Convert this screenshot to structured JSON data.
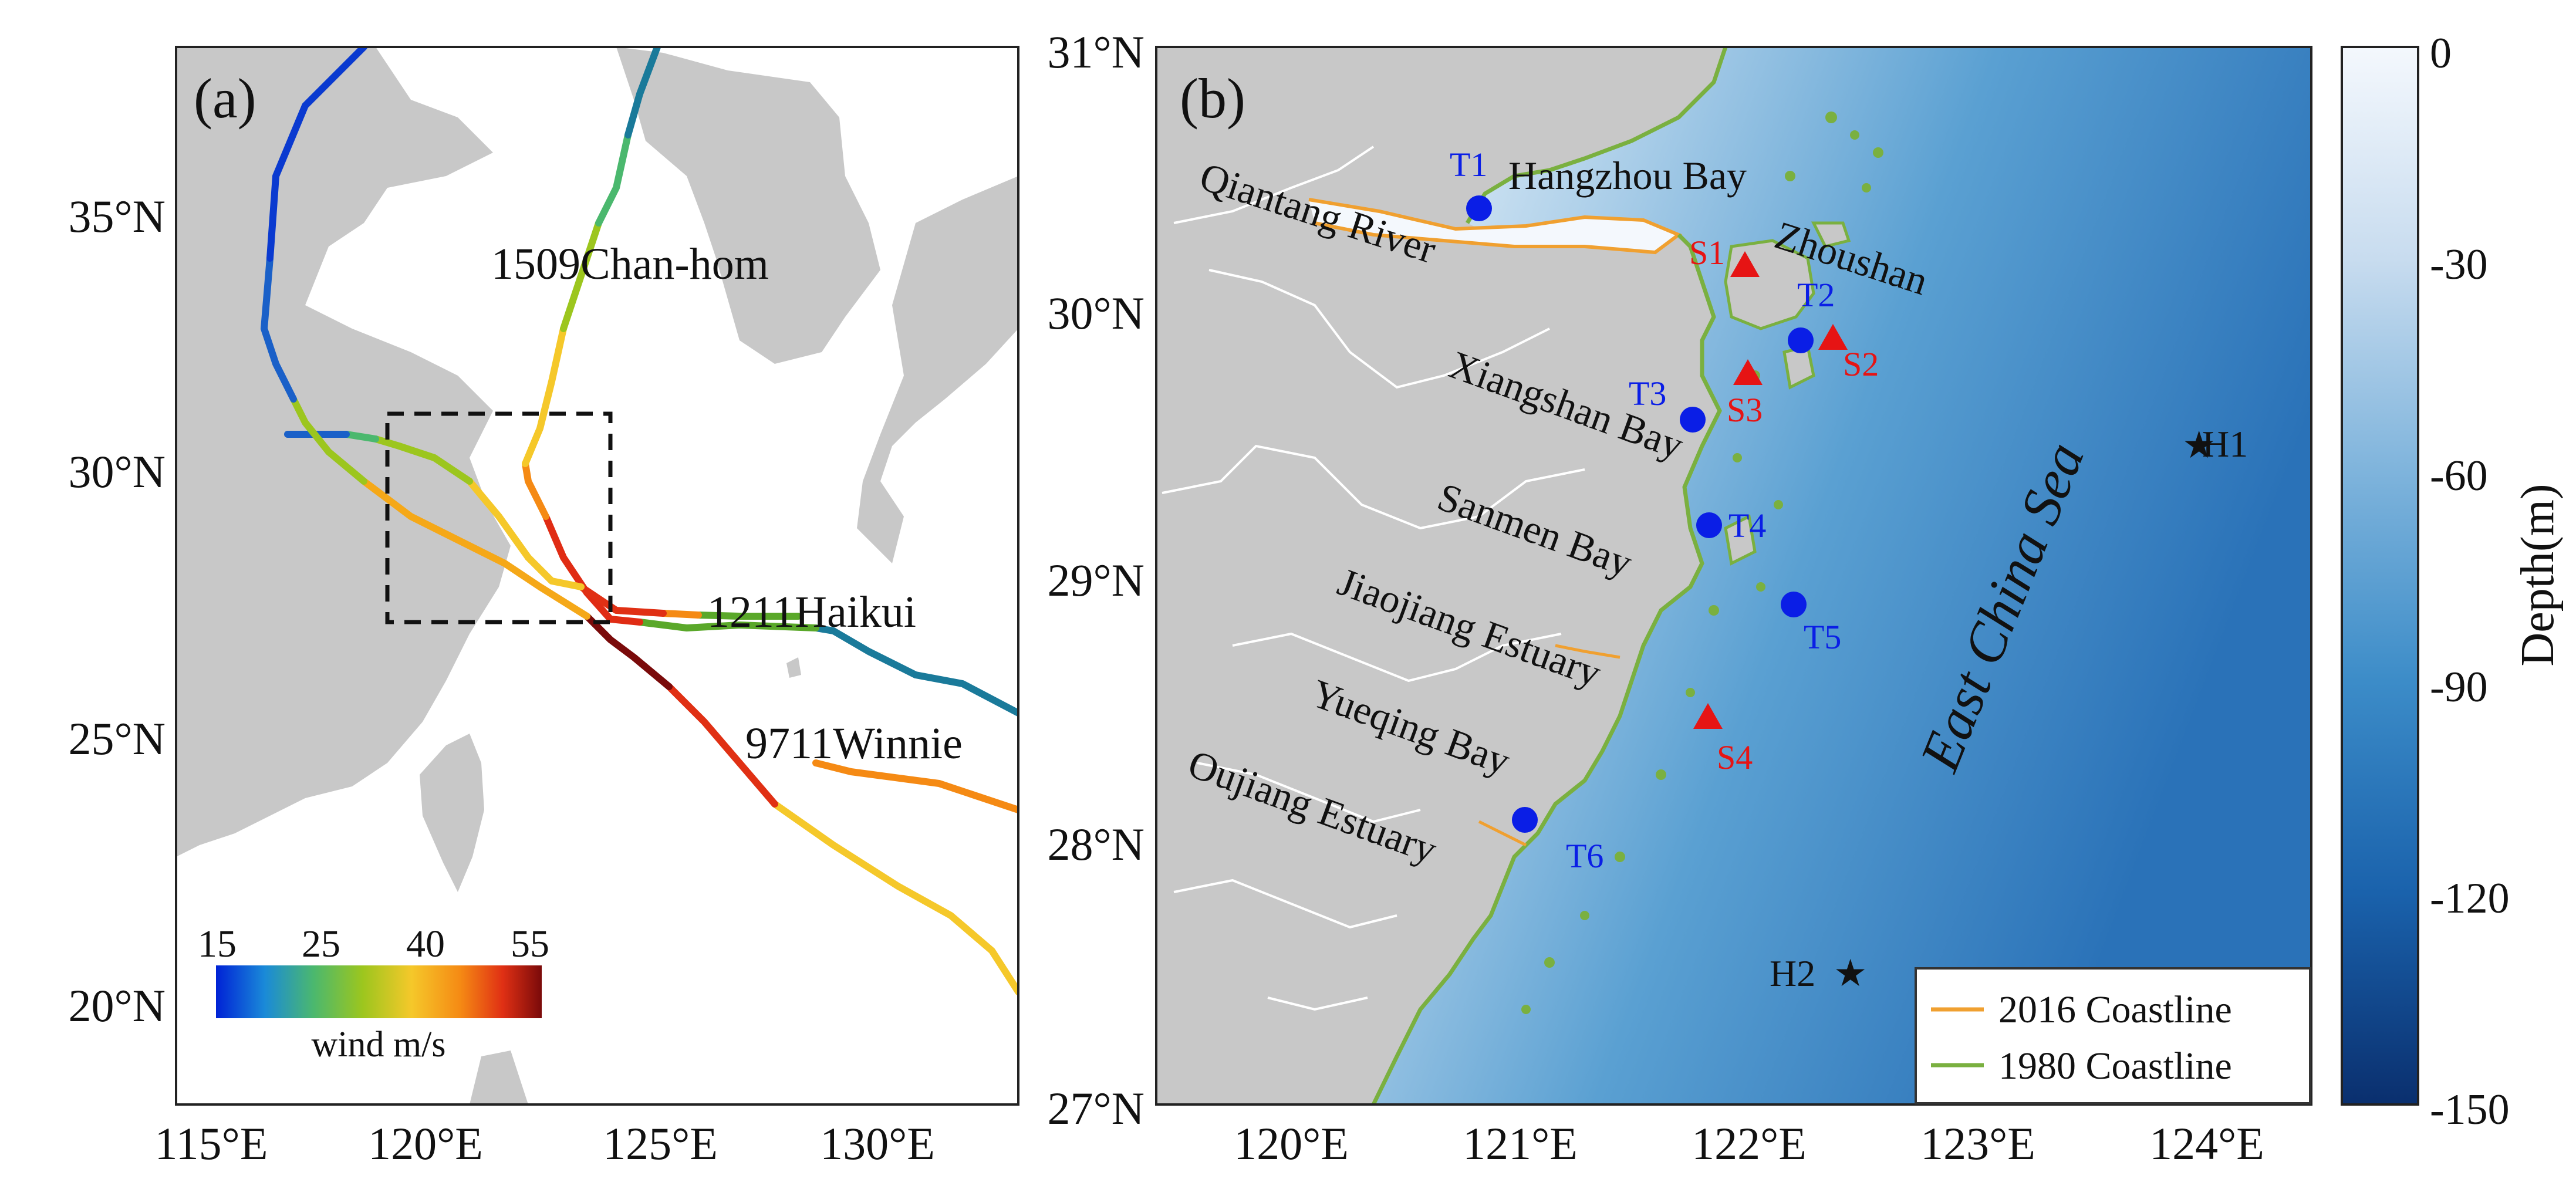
{
  "panel_a": {
    "label": "(a)",
    "lat_ticks": [
      "35°N",
      "30°N",
      "25°N",
      "20°N"
    ],
    "lon_ticks": [
      "115°E",
      "120°E",
      "125°E",
      "130°E"
    ],
    "typhoons": [
      {
        "name": "1509Chan-hom"
      },
      {
        "name": "1211Haikui"
      },
      {
        "name": "9711Winnie"
      }
    ],
    "wind_colorbar": {
      "ticks": [
        "15",
        "25",
        "40",
        "55"
      ],
      "label": "wind m/s",
      "colors": [
        "#0022d6",
        "#1a8ad8",
        "#4bb86e",
        "#9cc61e",
        "#f5c82a",
        "#f58a14",
        "#e03014",
        "#7a0a0a"
      ]
    }
  },
  "panel_b": {
    "label": "(b)",
    "lat_ticks": [
      "31°N",
      "30°N",
      "29°N",
      "28°N",
      "27°N"
    ],
    "lon_ticks": [
      "120°E",
      "121°E",
      "122°E",
      "123°E",
      "124°E"
    ],
    "places": [
      {
        "name": "Hangzhou Bay"
      },
      {
        "name": "Qiantang River"
      },
      {
        "name": "Zhoushan"
      },
      {
        "name": "Xiangshan Bay"
      },
      {
        "name": "Sanmen Bay"
      },
      {
        "name": "Jiaojiang Estuary"
      },
      {
        "name": "Yueqing Bay"
      },
      {
        "name": "Oujiang Estuary"
      }
    ],
    "sea_label": "East China Sea",
    "tide_stations": [
      "T1",
      "T2",
      "T3",
      "T4",
      "T5",
      "T6"
    ],
    "surge_stations": [
      "S1",
      "S2",
      "S3",
      "S4"
    ],
    "boundary_points": [
      "H1",
      "H2"
    ],
    "legend": [
      {
        "label": "2016 Coastline",
        "color": "#f0a030"
      },
      {
        "label": "1980 Coastline",
        "color": "#7ab040"
      }
    ],
    "colors": {
      "tide": "#0a1ee6",
      "surge": "#e61414",
      "land": "#c8c8c8"
    }
  },
  "depth_colorbar": {
    "ticks": [
      "0",
      "-30",
      "-60",
      "-90",
      "-120",
      "-150"
    ],
    "label": "Depth(m)"
  }
}
